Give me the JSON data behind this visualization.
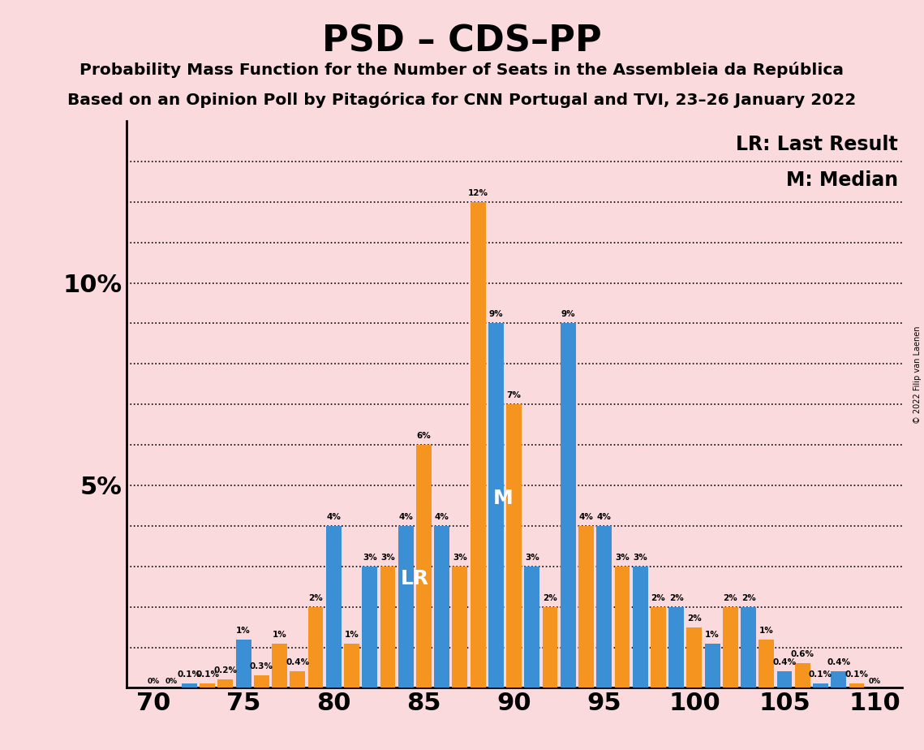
{
  "title": "PSD – CDS–PP",
  "subtitle1": "Probability Mass Function for the Number of Seats in the Assembleia da República",
  "subtitle2": "Based on an Opinion Poll by Pitagórica for CNN Portugal and TVI, 23–26 January 2022",
  "legend_lr": "LR: Last Result",
  "legend_m": "M: Median",
  "copyright": "© 2022 Filip van Laenen",
  "background_color": "#fadadd",
  "blue_color": "#3b8fd4",
  "orange_color": "#f5941e",
  "seats": [
    70,
    71,
    72,
    73,
    74,
    75,
    76,
    77,
    78,
    79,
    80,
    81,
    82,
    83,
    84,
    85,
    86,
    87,
    88,
    89,
    90,
    91,
    92,
    93,
    94,
    95,
    96,
    97,
    98,
    99,
    100,
    101,
    102,
    103,
    104,
    105,
    106,
    107,
    108,
    109,
    110
  ],
  "values": [
    0.0,
    0.0,
    0.1,
    0.1,
    0.2,
    1.2,
    0.3,
    1.1,
    0.4,
    2.0,
    4.0,
    1.1,
    3.0,
    3.0,
    4.0,
    6.0,
    4.0,
    3.0,
    12.0,
    9.0,
    7.0,
    3.0,
    2.0,
    9.0,
    4.0,
    4.0,
    3.0,
    3.0,
    2.0,
    2.0,
    1.5,
    1.1,
    2.0,
    2.0,
    1.2,
    0.4,
    0.6,
    0.1,
    0.4,
    0.1,
    0.0
  ],
  "colors": [
    "blue",
    "blue",
    "blue",
    "orange",
    "orange",
    "blue",
    "orange",
    "orange",
    "orange",
    "orange",
    "blue",
    "orange",
    "blue",
    "orange",
    "blue",
    "orange",
    "blue",
    "orange",
    "orange",
    "blue",
    "orange",
    "blue",
    "orange",
    "blue",
    "orange",
    "blue",
    "orange",
    "blue",
    "orange",
    "blue",
    "orange",
    "blue",
    "orange",
    "blue",
    "orange",
    "blue",
    "orange",
    "blue",
    "blue",
    "orange",
    "blue"
  ],
  "lr_seat": 85,
  "median_seat": 89,
  "ylim": [
    0,
    13
  ],
  "bar_width": 0.85
}
